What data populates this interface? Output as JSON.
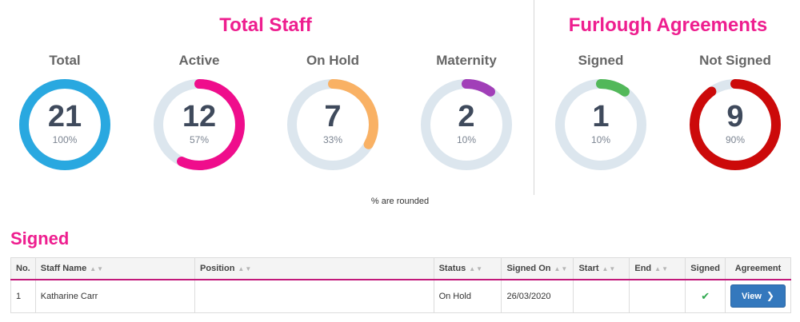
{
  "headings": {
    "total_staff": "Total Staff",
    "furlough_agreements": "Furlough Agreements",
    "footnote": "% are rounded",
    "signed_section": "Signed"
  },
  "gauges": [
    {
      "label": "Total",
      "count": "21",
      "percent": "100%",
      "fraction": 1.0,
      "color": "#29a8e0"
    },
    {
      "label": "Active",
      "count": "12",
      "percent": "57%",
      "fraction": 0.57,
      "color": "#ef0d8c"
    },
    {
      "label": "On Hold",
      "count": "7",
      "percent": "33%",
      "fraction": 0.33,
      "color": "#f9b164"
    },
    {
      "label": "Maternity",
      "count": "2",
      "percent": "10%",
      "fraction": 0.1,
      "color": "#a13fb8"
    },
    {
      "label": "Signed",
      "count": "1",
      "percent": "10%",
      "fraction": 0.1,
      "color": "#52b85a"
    },
    {
      "label": "Not Signed",
      "count": "9",
      "percent": "90%",
      "fraction": 0.9,
      "color": "#cc0a0a"
    }
  ],
  "ring_track_color": "#dce6ee",
  "table": {
    "columns": [
      "No.",
      "Staff Name",
      "Position",
      "Status",
      "Signed On",
      "Start",
      "End",
      "Signed",
      "Agreement"
    ],
    "rows": [
      {
        "no": "1",
        "staff_name": "Katharine Carr",
        "position": "",
        "status": "On Hold",
        "signed_on": "26/03/2020",
        "start": "",
        "end": "",
        "signed": true,
        "agreement_button": "View"
      }
    ]
  },
  "icons": {
    "sort": "sort-arrows-icon",
    "check": "check-icon",
    "chevron": "chevron-right-icon"
  }
}
